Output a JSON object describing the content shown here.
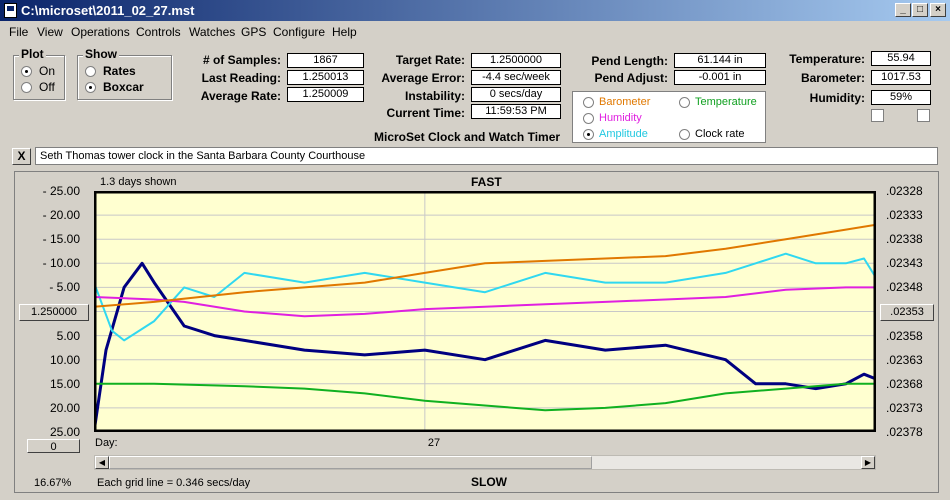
{
  "window": {
    "title": "C:\\microset\\2011_02_27.mst"
  },
  "menu": [
    "File",
    "View",
    "Operations",
    "Controls",
    "Watches",
    "GPS",
    "Configure",
    "Help"
  ],
  "plot_group": {
    "title": "Plot",
    "on": "On",
    "off": "Off",
    "selected": "On"
  },
  "show_group": {
    "title": "Show",
    "rates": "Rates",
    "boxcar": "Boxcar",
    "selected": "Boxcar"
  },
  "stats": {
    "samples_label": "# of Samples:",
    "samples": "1867",
    "last_label": "Last Reading:",
    "last": "1.250013",
    "avg_rate_label": "Average Rate:",
    "avg_rate": "1.250009"
  },
  "rates": {
    "target_label": "Target Rate:",
    "target": "1.2500000",
    "avg_err_label": "Average Error:",
    "avg_err": "-4.4 sec/week",
    "instab_label": "Instability:",
    "instab": "0 secs/day",
    "time_label": "Current Time:",
    "time": "11:59:53 PM",
    "app_name": "MicroSet Clock and Watch Timer"
  },
  "pend": {
    "length_label": "Pend Length:",
    "length": "61.144 in",
    "adjust_label": "Pend Adjust:",
    "adjust": "-0.001 in"
  },
  "overlay_options": {
    "barometer": "Barometer",
    "temperature": "Temperature",
    "humidity": "Humidity",
    "amplitude": "Amplitude",
    "clock_rate": "Clock rate",
    "selected": "Amplitude",
    "colors": {
      "barometer": "#e07800",
      "temperature": "#10b020",
      "humidity": "#e020e0",
      "amplitude": "#30d8f0",
      "clock_rate": "#000000"
    }
  },
  "env": {
    "temp_label": "Temperature:",
    "temp": "55.94",
    "baro_label": "Barometer:",
    "baro": "1017.53",
    "hum_label": "Humidity:",
    "hum": "59%"
  },
  "description": {
    "close": "X",
    "text": "Seth Thomas tower clock in the Santa Barbara County Courthouse"
  },
  "chart_data": {
    "type": "line",
    "top_label": "FAST",
    "bottom_label": "SLOW",
    "days_shown": "1.3 days shown",
    "left_ticks": [
      "25.00",
      "20.00",
      "15.00",
      "10.00",
      "5.00",
      "",
      "5.00",
      "10.00",
      "15.00",
      "20.00",
      "25.00"
    ],
    "right_ticks": [
      ".02328",
      ".02333",
      ".02338",
      ".02343",
      ".02348",
      "",
      ".02358",
      ".02363",
      ".02368",
      ".02373",
      ".02378"
    ],
    "center_left": "1.250000",
    "center_right": ".02353",
    "ylim": [
      -25,
      25
    ],
    "x_label": "Day:",
    "x_ticks": [
      {
        "day": 27,
        "label": "27"
      }
    ],
    "xlim": [
      26.45,
      27.75
    ],
    "grid_note": "Each grid line = 0.346 secs/day",
    "zoom": "16.67%",
    "offset_btn": "0",
    "colors": {
      "rate": "#000080",
      "amplitude": "#30d8f0",
      "humidity": "#e020e0",
      "barometer": "#e07800",
      "temperature": "#10b020",
      "plot_bg": "#ffffd0"
    },
    "series": [
      {
        "key": "rate",
        "x": [
          26.45,
          26.47,
          26.5,
          26.53,
          26.55,
          26.6,
          26.65,
          26.7,
          26.8,
          26.9,
          27.0,
          27.1,
          27.2,
          27.3,
          27.4,
          27.5,
          27.55,
          27.6,
          27.65,
          27.7,
          27.73,
          27.75
        ],
        "y": [
          -25,
          -8,
          5,
          10,
          6,
          -3,
          -5,
          -6,
          -8,
          -9,
          -8,
          -10,
          -6,
          -8,
          -7,
          -10,
          -15,
          -15,
          -16,
          -15,
          -13,
          -14
        ]
      },
      {
        "key": "amplitude",
        "x": [
          26.45,
          26.48,
          26.5,
          26.55,
          26.6,
          26.65,
          26.7,
          26.8,
          26.9,
          27.0,
          27.1,
          27.2,
          27.3,
          27.4,
          27.5,
          27.55,
          27.6,
          27.65,
          27.7,
          27.73,
          27.75
        ],
        "y": [
          6,
          -4,
          -6,
          -2,
          5,
          3,
          8,
          6,
          8,
          6,
          4,
          8,
          6,
          6,
          8,
          10,
          12,
          10,
          10,
          11,
          7
        ]
      },
      {
        "key": "humidity",
        "x": [
          26.45,
          26.55,
          26.6,
          26.7,
          26.8,
          26.9,
          27.0,
          27.1,
          27.2,
          27.3,
          27.4,
          27.5,
          27.6,
          27.7,
          27.75
        ],
        "y": [
          3,
          2.5,
          2,
          0,
          -1,
          -0.5,
          0.5,
          1,
          1.5,
          2,
          2.5,
          3,
          4.5,
          5,
          5
        ]
      },
      {
        "key": "barometer",
        "x": [
          26.45,
          26.55,
          26.7,
          26.8,
          26.9,
          27.0,
          27.1,
          27.2,
          27.3,
          27.4,
          27.5,
          27.6,
          27.7,
          27.75
        ],
        "y": [
          1,
          2,
          4,
          5,
          6,
          8,
          10,
          10.5,
          11,
          11.5,
          13,
          15,
          17,
          18
        ]
      },
      {
        "key": "temperature",
        "x": [
          26.45,
          26.55,
          26.7,
          26.8,
          26.9,
          27.0,
          27.1,
          27.2,
          27.3,
          27.4,
          27.5,
          27.6,
          27.7,
          27.75
        ],
        "y": [
          -15,
          -15,
          -15.5,
          -16,
          -17,
          -18.5,
          -19.5,
          -20.5,
          -20,
          -19,
          -17,
          -16,
          -15,
          -15
        ]
      }
    ]
  }
}
